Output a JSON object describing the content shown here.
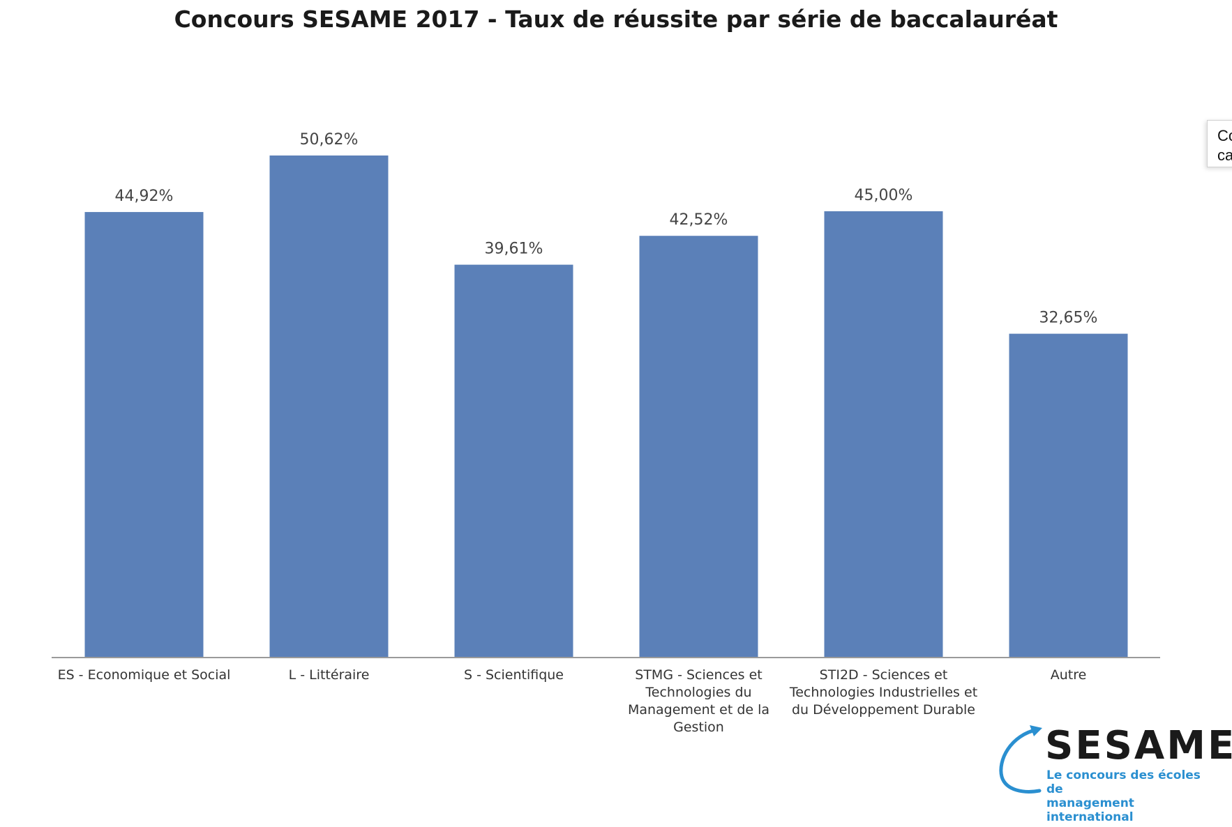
{
  "chart_data": {
    "type": "bar",
    "title": "Concours SESAME 2017 - Taux de réussite par série de baccalauréat",
    "categories": [
      "ES - Economique et Social",
      "L - Littéraire",
      "S - Scientifique",
      "STMG - Sciences et Technologies du Management et de la Gestion",
      "STI2D - Sciences et Technologies Industrielles et du Développement Durable",
      "Autre"
    ],
    "category_lines": [
      [
        "ES - Economique et Social"
      ],
      [
        "L - Littéraire"
      ],
      [
        "S - Scientifique"
      ],
      [
        "STMG - Sciences et",
        "Technologies du",
        "Management et de la",
        "Gestion"
      ],
      [
        "STI2D - Sciences et",
        "Technologies Industrielles et",
        "du Développement Durable"
      ],
      [
        "Autre"
      ]
    ],
    "values": [
      44.92,
      50.62,
      39.61,
      42.52,
      45.0,
      32.65
    ],
    "value_labels": [
      "44,92%",
      "50,62%",
      "39,61%",
      "42,52%",
      "45,00%",
      "32,65%"
    ],
    "xlabel": "",
    "ylabel": "",
    "ylim": [
      0,
      50.62
    ],
    "grid": false,
    "legend": "none",
    "bar_color": "#5b80b8",
    "axis_color": "#9a9a9a"
  },
  "tooltip": {
    "line1": "Co",
    "line2": "ca"
  },
  "logo": {
    "word": "SESAME",
    "tagline_1": "Le concours des écoles de",
    "tagline_2": "management international",
    "tag_color": "#2a8fd0"
  }
}
